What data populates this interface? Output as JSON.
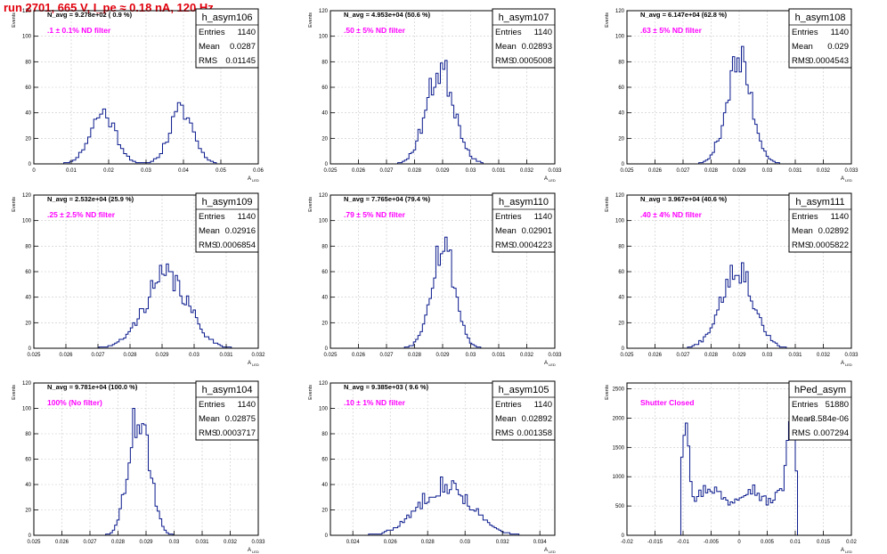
{
  "title": "run 2701,   665 V, I_pe ≈ 0.18 nA, 120 Hz",
  "ylabel": "Events",
  "xlabel_main": "A",
  "xlabel_sub": "LED",
  "stats_labels": [
    "Entries",
    "Mean",
    "RMS"
  ],
  "colors": {
    "histogram": "#0a1a8c",
    "annotation_navg": "#000000",
    "annotation_filter": "#ff00ff",
    "title": "#e0000c",
    "grid": "#c8c8c8"
  },
  "chart_data": [
    {
      "type": "bar",
      "name": "h_asym106",
      "navg": "N_avg = 9.278e+02 ( 0.9 %)",
      "filter": ".1 ± 0.1% ND filter",
      "stats": {
        "entries": "1140",
        "mean": "0.0287",
        "rms": "0.01145"
      },
      "xlim": [
        0,
        0.06
      ],
      "ylim": [
        0,
        120
      ],
      "xticks": [
        0,
        0.01,
        0.02,
        0.03,
        0.04,
        0.05,
        0.06
      ],
      "xticklabels": [
        "0",
        "0.01",
        "0.02",
        "0.03",
        "0.04",
        "0.05",
        "0.06"
      ],
      "yticks": [
        0,
        20,
        40,
        60,
        80,
        100,
        120
      ],
      "peaks": [
        {
          "mean": 0.0185,
          "sigma": 0.0034,
          "height": 40
        },
        {
          "mean": 0.0395,
          "sigma": 0.0032,
          "height": 42
        }
      ],
      "bins": 60,
      "range": [
        0.004,
        0.052
      ],
      "seed": 11
    },
    {
      "type": "bar",
      "name": "h_asym107",
      "navg": "N_avg = 4.953e+04 (50.6 %)",
      "filter": ".50 ± 5% ND filter",
      "stats": {
        "entries": "1140",
        "mean": "0.02893",
        "rms": "0.0005008"
      },
      "xlim": [
        0.025,
        0.033
      ],
      "ylim": [
        0,
        120
      ],
      "xticks": [
        0.025,
        0.026,
        0.027,
        0.028,
        0.029,
        0.03,
        0.031,
        0.032,
        0.033
      ],
      "xticklabels": [
        "0.025",
        "0.026",
        "0.027",
        "0.028",
        "0.029",
        "0.03",
        "0.031",
        "0.032",
        "0.033"
      ],
      "yticks": [
        0,
        20,
        40,
        60,
        80,
        100,
        120
      ],
      "peaks": [
        {
          "mean": 0.02893,
          "sigma": 0.0005,
          "height": 74
        }
      ],
      "bins": 100,
      "range": [
        0.025,
        0.033
      ],
      "seed": 23
    },
    {
      "type": "bar",
      "name": "h_asym108",
      "navg": "N_avg = 6.147e+04 (62.8 %)",
      "filter": ".63 ± 5% ND filter",
      "stats": {
        "entries": "1140",
        "mean": "0.029",
        "rms": "0.0004543"
      },
      "xlim": [
        0.025,
        0.033
      ],
      "ylim": [
        0,
        120
      ],
      "xticks": [
        0.025,
        0.026,
        0.027,
        0.028,
        0.029,
        0.03,
        0.031,
        0.032,
        0.033
      ],
      "xticklabels": [
        "0.025",
        "0.026",
        "0.027",
        "0.028",
        "0.029",
        "0.03",
        "0.031",
        "0.032",
        "0.033"
      ],
      "yticks": [
        0,
        20,
        40,
        60,
        80,
        100,
        120
      ],
      "peaks": [
        {
          "mean": 0.029,
          "sigma": 0.00045,
          "height": 80
        }
      ],
      "bins": 100,
      "range": [
        0.025,
        0.033
      ],
      "seed": 37
    },
    {
      "type": "bar",
      "name": "h_asym109",
      "navg": "N_avg = 2.532e+04 (25.9 %)",
      "filter": ".25 ± 2.5% ND filter",
      "stats": {
        "entries": "1140",
        "mean": "0.02916",
        "rms": "0.0006854"
      },
      "xlim": [
        0.025,
        0.032
      ],
      "ylim": [
        0,
        120
      ],
      "xticks": [
        0.025,
        0.026,
        0.027,
        0.028,
        0.029,
        0.03,
        0.031,
        0.032
      ],
      "xticklabels": [
        "0.025",
        "0.026",
        "0.027",
        "0.028",
        "0.029",
        "0.03",
        "0.031",
        "0.032"
      ],
      "yticks": [
        0,
        20,
        40,
        60,
        80,
        100,
        120
      ],
      "peaks": [
        {
          "mean": 0.02914,
          "sigma": 0.00068,
          "height": 56
        }
      ],
      "bins": 100,
      "range": [
        0.025,
        0.032
      ],
      "seed": 41
    },
    {
      "type": "bar",
      "name": "h_asym110",
      "navg": "N_avg = 7.765e+04 (79.4 %)",
      "filter": ".79 ± 5% ND filter",
      "stats": {
        "entries": "1140",
        "mean": "0.02901",
        "rms": "0.0004223"
      },
      "xlim": [
        0.025,
        0.033
      ],
      "ylim": [
        0,
        120
      ],
      "xticks": [
        0.025,
        0.026,
        0.027,
        0.028,
        0.029,
        0.03,
        0.031,
        0.032,
        0.033
      ],
      "xticklabels": [
        "0.025",
        "0.026",
        "0.027",
        "0.028",
        "0.029",
        "0.03",
        "0.031",
        "0.032",
        "0.033"
      ],
      "yticks": [
        0,
        20,
        40,
        60,
        80,
        100,
        120
      ],
      "peaks": [
        {
          "mean": 0.02901,
          "sigma": 0.00042,
          "height": 82
        }
      ],
      "bins": 100,
      "range": [
        0.025,
        0.033
      ],
      "seed": 53
    },
    {
      "type": "bar",
      "name": "h_asym111",
      "navg": "N_avg = 3.967e+04 (40.6 %)",
      "filter": ".40 ± 4% ND filter",
      "stats": {
        "entries": "1140",
        "mean": "0.02892",
        "rms": "0.0005822"
      },
      "xlim": [
        0.025,
        0.033
      ],
      "ylim": [
        0,
        120
      ],
      "xticks": [
        0.025,
        0.026,
        0.027,
        0.028,
        0.029,
        0.03,
        0.031,
        0.032,
        0.033
      ],
      "xticklabels": [
        "0.025",
        "0.026",
        "0.027",
        "0.028",
        "0.029",
        "0.03",
        "0.031",
        "0.032",
        "0.033"
      ],
      "yticks": [
        0,
        20,
        40,
        60,
        80,
        100,
        120
      ],
      "peaks": [
        {
          "mean": 0.02892,
          "sigma": 0.00058,
          "height": 64
        }
      ],
      "bins": 100,
      "range": [
        0.025,
        0.033
      ],
      "seed": 67
    },
    {
      "type": "bar",
      "name": "h_asym104",
      "navg": "N_avg = 9.781e+04 (100.0 %)",
      "filter": "100% (No filter)",
      "stats": {
        "entries": "1140",
        "mean": "0.02875",
        "rms": "0.0003717"
      },
      "xlim": [
        0.025,
        0.033
      ],
      "ylim": [
        0,
        120
      ],
      "xticks": [
        0.025,
        0.026,
        0.027,
        0.028,
        0.029,
        0.03,
        0.031,
        0.032,
        0.033
      ],
      "xticklabels": [
        "0.025",
        "0.026",
        "0.027",
        "0.028",
        "0.029",
        "0.03",
        "0.031",
        "0.032",
        "0.033"
      ],
      "yticks": [
        0,
        20,
        40,
        60,
        80,
        100,
        120
      ],
      "peaks": [
        {
          "mean": 0.02875,
          "sigma": 0.00037,
          "height": 96
        }
      ],
      "bins": 100,
      "range": [
        0.025,
        0.033
      ],
      "seed": 71
    },
    {
      "type": "bar",
      "name": "h_asym105",
      "navg": "N_avg = 9.385e+03 ( 9.6 %)",
      "filter": ".10 ± 1% ND filter",
      "stats": {
        "entries": "1140",
        "mean": "0.02892",
        "rms": "0.001358"
      },
      "xlim": [
        0.0228,
        0.0348
      ],
      "ylim": [
        0,
        120
      ],
      "xticks": [
        0.024,
        0.026,
        0.028,
        0.03,
        0.032,
        0.034
      ],
      "xticklabels": [
        "0.024",
        "0.026",
        "0.028",
        "0.03",
        "0.032",
        "0.034"
      ],
      "yticks": [
        0,
        20,
        40,
        60,
        80,
        100,
        120
      ],
      "peaks": [
        {
          "mean": 0.02892,
          "sigma": 0.00136,
          "height": 40
        }
      ],
      "bins": 100,
      "range": [
        0.0228,
        0.0348
      ],
      "seed": 83
    },
    {
      "type": "bar",
      "name": "hPed_asym",
      "navg": "",
      "filter": "Shutter Closed",
      "stats": {
        "entries": "51880",
        "mean": "-3.584e-06",
        "rms": "0.007294"
      },
      "xlim": [
        -0.02,
        0.02
      ],
      "ylim": [
        0,
        2600
      ],
      "xticks": [
        -0.02,
        -0.015,
        -0.01,
        -0.005,
        0,
        0.005,
        0.01,
        0.015,
        0.02
      ],
      "xticklabels": [
        "-0.02",
        "-0.015",
        "-0.01",
        "-0.005",
        "0",
        "0.005",
        "0.01",
        "0.015",
        "0.02"
      ],
      "yticks": [
        0,
        500,
        1000,
        1500,
        2000,
        2500
      ],
      "yticklabels": [
        "0",
        "500",
        "1000",
        "1500",
        "2000",
        "2500"
      ],
      "shape": "pedestal",
      "bins": 100,
      "range": [
        -0.02,
        0.02
      ],
      "seed": 97
    }
  ]
}
